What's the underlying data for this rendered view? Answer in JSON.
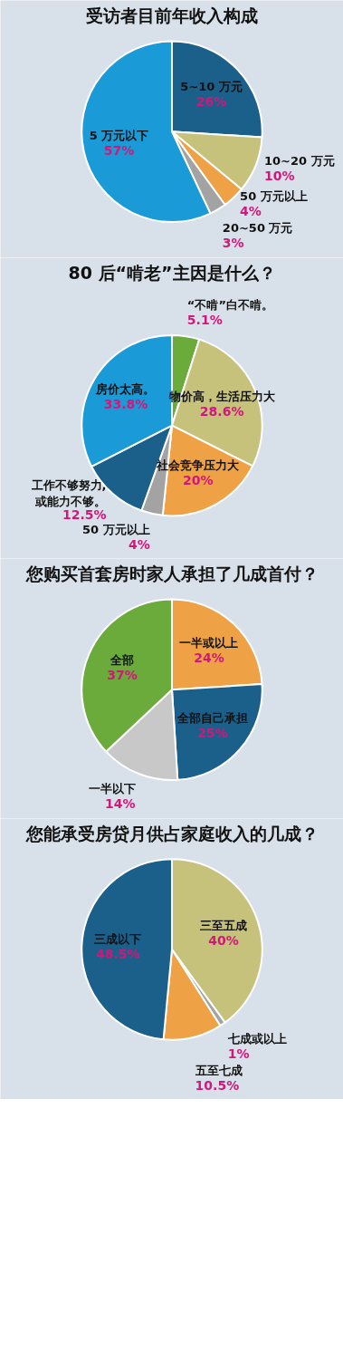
{
  "chart_data": [
    {
      "type": "pie",
      "title": "受访者目前年收入构成",
      "categories": [
        "5~10 万元",
        "10~20 万元",
        "50 万元以上",
        "20~50 万元",
        "5 万元以下"
      ],
      "values": [
        26,
        10,
        4,
        3,
        57
      ],
      "colors": [
        "#1b5f8b",
        "#c6c27c",
        "#eea245",
        "#a3a3a3",
        "#1a9bd7"
      ],
      "value_labels": [
        "26%",
        "10%",
        "4%",
        "3%",
        "57%"
      ]
    },
    {
      "type": "pie",
      "title": "80 后“啃老”主因是什么？",
      "categories": [
        "“不啃”白不啃。",
        "物价高，生活压力大",
        "社会竞争压力大",
        "50 万元以上",
        "工作不够努力,或能力不够。",
        "房价太高。"
      ],
      "values": [
        5.1,
        28.6,
        20,
        4,
        12.5,
        33.8
      ],
      "colors": [
        "#6bab3c",
        "#c6c27c",
        "#eea245",
        "#a3a3a3",
        "#1b5f8b",
        "#1a9bd7"
      ],
      "value_labels": [
        "5.1%",
        "28.6%",
        "20%",
        "4%",
        "12.5%",
        "33.8%"
      ]
    },
    {
      "type": "pie",
      "title": "您购买首套房时家人承担了几成首付？",
      "categories": [
        "一半或以上",
        "全部自己承担",
        "一半以下",
        "全部"
      ],
      "values": [
        24,
        25,
        14,
        37
      ],
      "colors": [
        "#eea245",
        "#1b5f8b",
        "#c8c8c8",
        "#6bab3c"
      ],
      "value_labels": [
        "24%",
        "25%",
        "14%",
        "37%"
      ]
    },
    {
      "type": "pie",
      "title": "您能承受房贷月供占家庭收入的几成？",
      "categories": [
        "三至五成",
        "七成或以上",
        "五至七成",
        "三成以下"
      ],
      "values": [
        40,
        1,
        10.5,
        48.5
      ],
      "colors": [
        "#c6c27c",
        "#a3a3a3",
        "#eea245",
        "#1b5f8b"
      ],
      "value_labels": [
        "40%",
        "1%",
        "10.5%",
        "48.5%"
      ]
    }
  ]
}
